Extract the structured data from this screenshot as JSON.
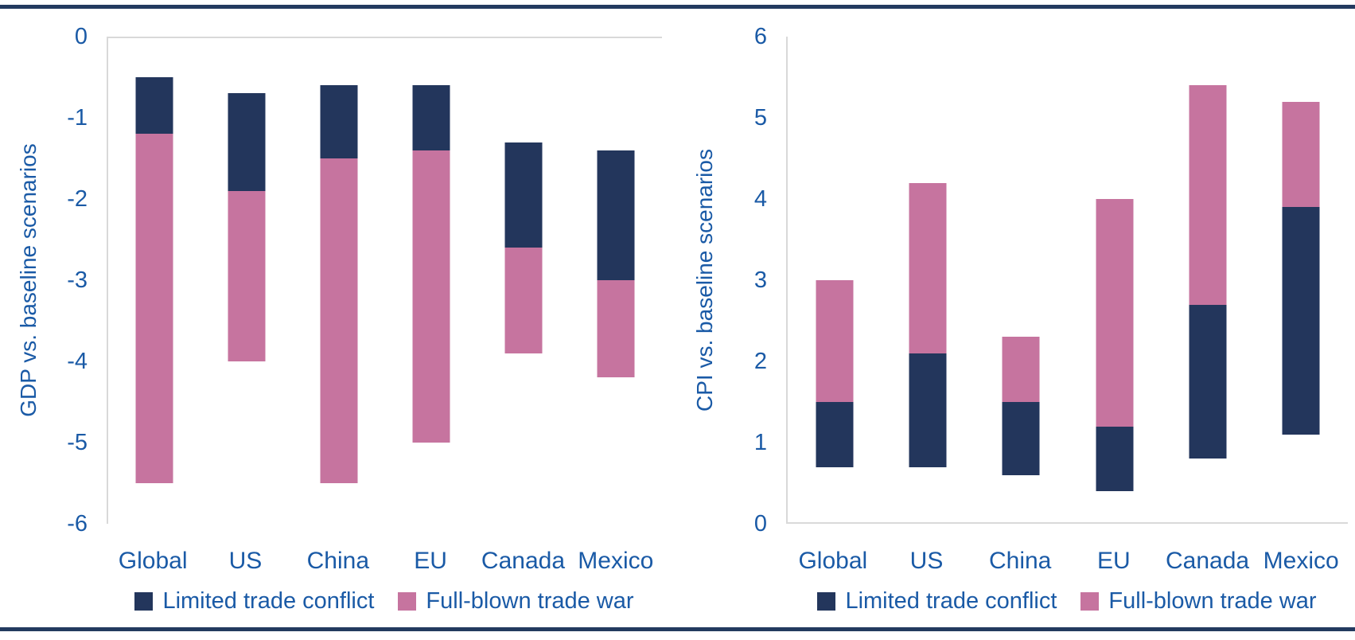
{
  "page": {
    "border_rule_color": "#233a5f",
    "background": "#ffffff",
    "text_color": "#1a5aa6",
    "axis_line_color": "#d9d9d9"
  },
  "chart_data": [
    {
      "type": "bar",
      "subtype": "stacked-floating-column",
      "ylabel": "GDP vs. baseline scenarios",
      "ylim": [
        -6,
        0
      ],
      "yticks": [
        0,
        -1,
        -2,
        -3,
        -4,
        -5,
        -6
      ],
      "grid": false,
      "legend_position": "bottom",
      "categories": [
        "Global",
        "US",
        "China",
        "EU",
        "Canada",
        "Mexico"
      ],
      "series": [
        {
          "name": "Limited trade conflict",
          "color": "#23365c",
          "ranges": [
            [
              -0.5,
              -1.2
            ],
            [
              -0.7,
              -1.9
            ],
            [
              -0.6,
              -1.5
            ],
            [
              -0.6,
              -1.4
            ],
            [
              -1.3,
              -2.6
            ],
            [
              -1.4,
              -3.0
            ]
          ]
        },
        {
          "name": "Full-blown trade war",
          "color": "#c6749f",
          "ranges": [
            [
              -1.2,
              -5.5
            ],
            [
              -1.9,
              -4.0
            ],
            [
              -1.5,
              -5.5
            ],
            [
              -1.4,
              -5.0
            ],
            [
              -2.6,
              -3.9
            ],
            [
              -3.0,
              -4.2
            ]
          ]
        }
      ]
    },
    {
      "type": "bar",
      "subtype": "stacked-floating-column",
      "ylabel": "CPI vs. baseline scenarios",
      "ylim": [
        0,
        6
      ],
      "yticks": [
        6,
        5,
        4,
        3,
        2,
        1,
        0
      ],
      "grid": false,
      "legend_position": "bottom",
      "categories": [
        "Global",
        "US",
        "China",
        "EU",
        "Canada",
        "Mexico"
      ],
      "series": [
        {
          "name": "Limited trade conflict",
          "color": "#23365c",
          "ranges": [
            [
              0.7,
              1.5
            ],
            [
              0.7,
              2.1
            ],
            [
              0.6,
              1.5
            ],
            [
              0.4,
              1.2
            ],
            [
              0.8,
              2.7
            ],
            [
              1.1,
              3.9
            ]
          ]
        },
        {
          "name": "Full-blown trade war",
          "color": "#c6749f",
          "ranges": [
            [
              1.5,
              3.0
            ],
            [
              2.1,
              4.2
            ],
            [
              1.5,
              2.3
            ],
            [
              1.2,
              4.0
            ],
            [
              2.7,
              5.4
            ],
            [
              3.9,
              5.2
            ]
          ]
        }
      ]
    }
  ]
}
